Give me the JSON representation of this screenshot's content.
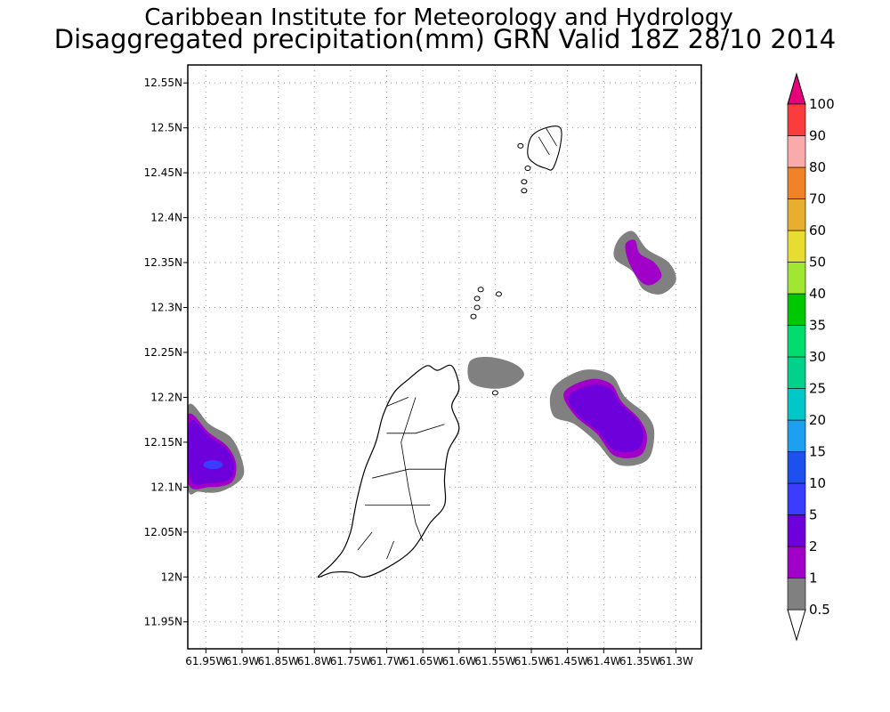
{
  "title_line1": "Caribbean Institute for Meteorology and Hydrology",
  "title_line2": "Disaggregated precipitation(mm) GRN Valid 18Z 28/10 2014",
  "map": {
    "lon_range": [
      -61.975,
      -61.265
    ],
    "lat_range": [
      11.92,
      12.57
    ],
    "grid": true,
    "lon_ticks": [
      {
        "value": -61.95,
        "label": "61.95W"
      },
      {
        "value": -61.9,
        "label": "61.9W"
      },
      {
        "value": -61.85,
        "label": "61.85W"
      },
      {
        "value": -61.8,
        "label": "61.8W"
      },
      {
        "value": -61.75,
        "label": "61.75W"
      },
      {
        "value": -61.7,
        "label": "61.7W"
      },
      {
        "value": -61.65,
        "label": "61.65W"
      },
      {
        "value": -61.6,
        "label": "61.6W"
      },
      {
        "value": -61.55,
        "label": "61.55W"
      },
      {
        "value": -61.5,
        "label": "61.5W"
      },
      {
        "value": -61.45,
        "label": "61.45W"
      },
      {
        "value": -61.4,
        "label": "61.4W"
      },
      {
        "value": -61.35,
        "label": "61.35W"
      },
      {
        "value": -61.3,
        "label": "61.3W"
      }
    ],
    "lat_ticks": [
      {
        "value": 12.55,
        "label": "12.55N"
      },
      {
        "value": 12.5,
        "label": "12.5N"
      },
      {
        "value": 12.45,
        "label": "12.45N"
      },
      {
        "value": 12.4,
        "label": "12.4N"
      },
      {
        "value": 12.35,
        "label": "12.35N"
      },
      {
        "value": 12.3,
        "label": "12.3N"
      },
      {
        "value": 12.25,
        "label": "12.25N"
      },
      {
        "value": 12.2,
        "label": "12.2N"
      },
      {
        "value": 12.15,
        "label": "12.15N"
      },
      {
        "value": 12.1,
        "label": "12.1N"
      },
      {
        "value": 12.05,
        "label": "12.05N"
      },
      {
        "value": 12.0,
        "label": "12N"
      },
      {
        "value": 11.95,
        "label": "11.95N"
      }
    ]
  },
  "colorbar": {
    "levels": [
      "0.5",
      "1",
      "2",
      "5",
      "10",
      "15",
      "20",
      "25",
      "30",
      "35",
      "40",
      "50",
      "60",
      "70",
      "80",
      "90",
      "100"
    ],
    "colors": [
      "#808080",
      "#a000c8",
      "#6e00dc",
      "#3c3cff",
      "#1e50f0",
      "#1ea0f0",
      "#00c8c8",
      "#00d28c",
      "#00dc6e",
      "#00c800",
      "#a0e632",
      "#e6dc32",
      "#e6af2d",
      "#f08228",
      "#faaaaa",
      "#fa3c3c",
      "#e60000",
      "#e6007a"
    ],
    "below_color": "#ffffff",
    "above_color": "#e6007a"
  },
  "precip_areas": [
    {
      "name": "west-edge",
      "levels": [
        0.5,
        1,
        2,
        5
      ],
      "outer": [
        [
          -61.975,
          12.19
        ],
        [
          -61.945,
          12.17
        ],
        [
          -61.915,
          12.155
        ],
        [
          -61.9,
          12.13
        ],
        [
          -61.9,
          12.11
        ],
        [
          -61.93,
          12.095
        ],
        [
          -61.96,
          12.095
        ],
        [
          -61.975,
          12.1
        ]
      ],
      "inner1": [
        [
          -61.975,
          12.18
        ],
        [
          -61.945,
          12.16
        ],
        [
          -61.92,
          12.145
        ],
        [
          -61.908,
          12.125
        ],
        [
          -61.915,
          12.105
        ],
        [
          -61.945,
          12.1
        ],
        [
          -61.975,
          12.105
        ]
      ],
      "core": {
        "lon": -61.94,
        "lat": 12.125
      }
    },
    {
      "name": "east-central",
      "levels": [
        0.5,
        1,
        2
      ],
      "outer": [
        [
          -61.47,
          12.21
        ],
        [
          -61.43,
          12.23
        ],
        [
          -61.39,
          12.225
        ],
        [
          -61.37,
          12.2
        ],
        [
          -61.34,
          12.18
        ],
        [
          -61.33,
          12.16
        ],
        [
          -61.34,
          12.13
        ],
        [
          -61.38,
          12.125
        ],
        [
          -61.41,
          12.15
        ],
        [
          -61.44,
          12.17
        ],
        [
          -61.47,
          12.18
        ]
      ],
      "inner1": [
        [
          -61.455,
          12.205
        ],
        [
          -61.42,
          12.22
        ],
        [
          -61.39,
          12.215
        ],
        [
          -61.375,
          12.195
        ],
        [
          -61.35,
          12.175
        ],
        [
          -61.34,
          12.155
        ],
        [
          -61.35,
          12.135
        ],
        [
          -61.385,
          12.135
        ],
        [
          -61.41,
          12.16
        ],
        [
          -61.44,
          12.18
        ]
      ]
    },
    {
      "name": "north-east",
      "levels": [
        0.5,
        1
      ],
      "outer": [
        [
          -61.38,
          12.375
        ],
        [
          -61.36,
          12.385
        ],
        [
          -61.34,
          12.365
        ],
        [
          -61.31,
          12.35
        ],
        [
          -61.3,
          12.33
        ],
        [
          -61.32,
          12.315
        ],
        [
          -61.345,
          12.32
        ],
        [
          -61.36,
          12.34
        ],
        [
          -61.385,
          12.355
        ]
      ],
      "inner1": [
        [
          -61.37,
          12.37
        ],
        [
          -61.357,
          12.375
        ],
        [
          -61.35,
          12.36
        ],
        [
          -61.33,
          12.35
        ],
        [
          -61.32,
          12.335
        ],
        [
          -61.335,
          12.325
        ],
        [
          -61.35,
          12.33
        ],
        [
          -61.365,
          12.35
        ]
      ]
    },
    {
      "name": "carriacou-south",
      "levels": [
        0.5
      ],
      "outer": [
        [
          -61.585,
          12.24
        ],
        [
          -61.56,
          12.245
        ],
        [
          -61.525,
          12.238
        ],
        [
          -61.51,
          12.225
        ],
        [
          -61.53,
          12.212
        ],
        [
          -61.56,
          12.21
        ],
        [
          -61.585,
          12.218
        ]
      ]
    }
  ],
  "coast": {
    "grenada": [
      [
        -61.61,
        12.235
      ],
      [
        -61.6,
        12.21
      ],
      [
        -61.61,
        12.19
      ],
      [
        -61.6,
        12.165
      ],
      [
        -61.615,
        12.14
      ],
      [
        -61.62,
        12.11
      ],
      [
        -61.62,
        12.08
      ],
      [
        -61.64,
        12.06
      ],
      [
        -61.665,
        12.03
      ],
      [
        -61.7,
        12.01
      ],
      [
        -61.73,
        12.0
      ],
      [
        -61.75,
        12.005
      ],
      [
        -61.775,
        12.005
      ],
      [
        -61.795,
        12.0
      ],
      [
        -61.775,
        12.015
      ],
      [
        -61.76,
        12.03
      ],
      [
        -61.75,
        12.05
      ],
      [
        -61.745,
        12.07
      ],
      [
        -61.74,
        12.09
      ],
      [
        -61.73,
        12.12
      ],
      [
        -61.715,
        12.15
      ],
      [
        -61.705,
        12.18
      ],
      [
        -61.69,
        12.205
      ],
      [
        -61.67,
        12.22
      ],
      [
        -61.645,
        12.235
      ],
      [
        -61.63,
        12.23
      ]
    ],
    "carriacou": [
      [
        -61.5,
        12.49
      ],
      [
        -61.48,
        12.5
      ],
      [
        -61.46,
        12.5
      ],
      [
        -61.46,
        12.48
      ],
      [
        -61.47,
        12.455
      ],
      [
        -61.48,
        12.455
      ],
      [
        -61.495,
        12.46
      ],
      [
        -61.505,
        12.47
      ]
    ],
    "islets": [
      [
        -61.575,
        12.31
      ],
      [
        -61.57,
        12.32
      ],
      [
        -61.575,
        12.3
      ],
      [
        -61.58,
        12.29
      ],
      [
        -61.545,
        12.315
      ],
      [
        -61.51,
        12.43
      ],
      [
        -61.51,
        12.44
      ],
      [
        -61.505,
        12.455
      ],
      [
        -61.515,
        12.48
      ],
      [
        -61.55,
        12.205
      ]
    ]
  }
}
